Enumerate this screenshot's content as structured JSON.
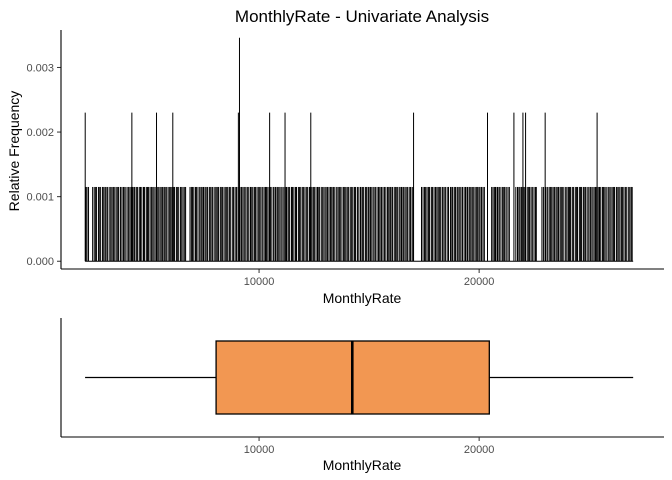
{
  "chart_data": [
    {
      "type": "histogram",
      "title": "MonthlyRate - Univariate Analysis",
      "xlabel": "MonthlyRate",
      "ylabel": "Relative Frequency",
      "xlim": [
        1000,
        28400
      ],
      "ylim": [
        -0.00012,
        0.00358
      ],
      "x_ticks": [
        10000,
        20000
      ],
      "x_tick_labels": [
        "10000",
        "20000"
      ],
      "y_ticks": [
        0,
        0.001,
        0.002,
        0.003
      ],
      "y_tick_labels": [
        "0.000",
        "0.001",
        "0.002",
        "0.003"
      ],
      "range": [
        2094,
        26999
      ],
      "base_value": 0.00115,
      "peaks": [
        {
          "x": 2100,
          "y": 0.0023
        },
        {
          "x": 4220,
          "y": 0.0023
        },
        {
          "x": 5340,
          "y": 0.0023
        },
        {
          "x": 6080,
          "y": 0.0023
        },
        {
          "x": 9060,
          "y": 0.0023
        },
        {
          "x": 9110,
          "y": 0.00346
        },
        {
          "x": 10480,
          "y": 0.0023
        },
        {
          "x": 11180,
          "y": 0.0023
        },
        {
          "x": 12350,
          "y": 0.0023
        },
        {
          "x": 17020,
          "y": 0.0023
        },
        {
          "x": 20380,
          "y": 0.0023
        },
        {
          "x": 21580,
          "y": 0.0023
        },
        {
          "x": 21990,
          "y": 0.0023
        },
        {
          "x": 22110,
          "y": 0.0023
        },
        {
          "x": 23000,
          "y": 0.0023
        },
        {
          "x": 25360,
          "y": 0.0023
        }
      ],
      "grid": false
    },
    {
      "type": "boxplot",
      "xlabel": "MonthlyRate",
      "xlim": [
        1000,
        28400
      ],
      "x_ticks": [
        10000,
        20000
      ],
      "x_tick_labels": [
        "10000",
        "20000"
      ],
      "min": 2094,
      "q1": 8047,
      "median": 14236,
      "q3": 20462,
      "max": 26999,
      "color": "#F29752",
      "grid": false
    }
  ]
}
